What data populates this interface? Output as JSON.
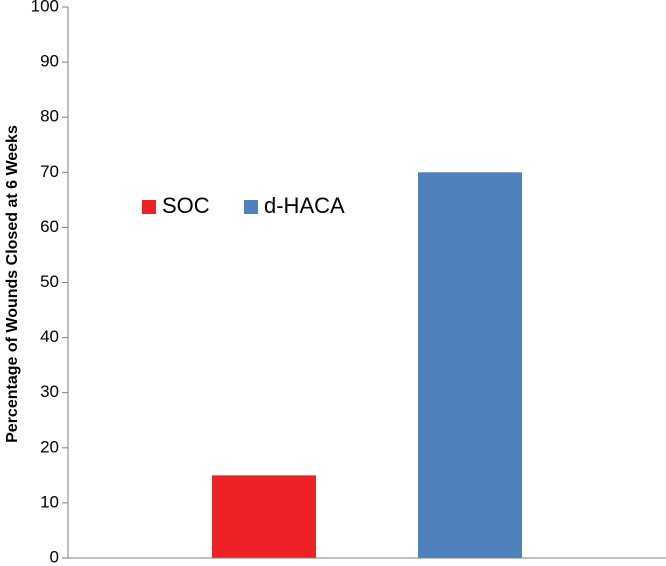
{
  "chart_data": {
    "type": "bar",
    "title": "",
    "xlabel": "",
    "ylabel": "Percentage of Wounds Closed at 6 Weeks",
    "ylim": [
      0,
      100
    ],
    "yticks": [
      0,
      10,
      20,
      30,
      40,
      50,
      60,
      70,
      80,
      90,
      100
    ],
    "grid": false,
    "legend_position": "upper-left",
    "series": [
      {
        "name": "SOC",
        "values": [
          15
        ],
        "color": "#ec2227"
      },
      {
        "name": "d-HACA",
        "values": [
          70
        ],
        "color": "#4f81bd"
      }
    ]
  }
}
